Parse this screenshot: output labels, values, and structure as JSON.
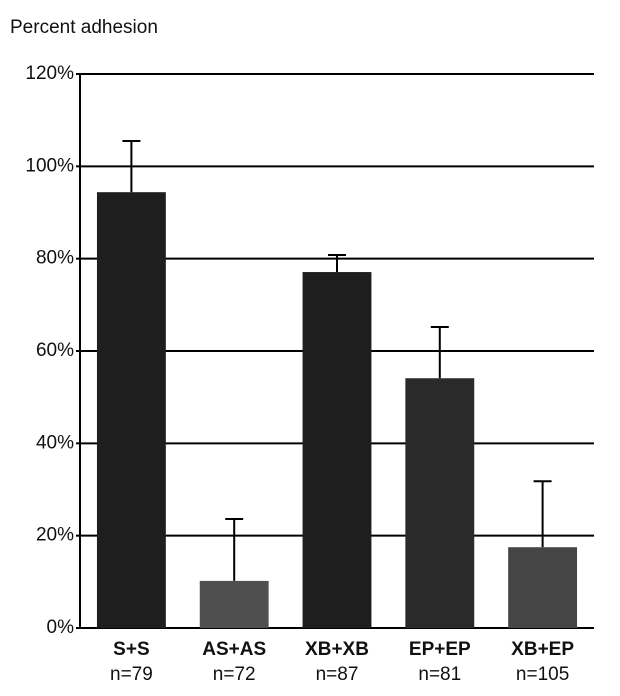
{
  "chart_data": {
    "type": "bar",
    "y_axis_label": "Percent adhesion",
    "categories": [
      "S+S",
      "AS+AS",
      "XB+XB",
      "EP+EP",
      "XB+EP"
    ],
    "sample_sizes": [
      "n=79",
      "n=72",
      "n=87",
      "n=81",
      "n=105"
    ],
    "values": [
      94.4,
      10.2,
      77.1,
      54.1,
      17.5
    ],
    "errors": [
      11.1,
      13.4,
      3.7,
      11.1,
      14.3
    ],
    "colors": [
      "#1e1e1e",
      "#4f4f4f",
      "#1e1e1e",
      "#2a2a2a",
      "#454545"
    ],
    "ylim": [
      0,
      120
    ],
    "yticks": [
      {
        "value": 0,
        "label": "0%"
      },
      {
        "value": 20,
        "label": "20%"
      },
      {
        "value": 40,
        "label": "40%"
      },
      {
        "value": 60,
        "label": "60%"
      },
      {
        "value": 80,
        "label": "80%"
      },
      {
        "value": 100,
        "label": "100%"
      },
      {
        "value": 120,
        "label": "120%"
      }
    ],
    "grid": true
  }
}
